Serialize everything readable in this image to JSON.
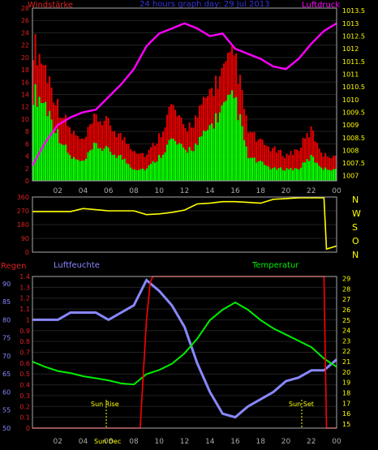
{
  "header": {
    "left_label": "Windstärke",
    "title": "24 hours graph day: 29 Jul 2013",
    "right_label": "Luftdruck"
  },
  "panel2": {
    "right_labels": [
      "N",
      "W",
      "S",
      "O",
      "N"
    ]
  },
  "panel3": {
    "left_label": "Regen",
    "mid_label": "Luftfeuchte",
    "right_label": "Temperatur",
    "sun_rise_label": "Sun Rise",
    "sun_set_label": "Sun Set",
    "sun_dec_label": "Sun Dec"
  },
  "colors": {
    "wind_gust": "#dd0000",
    "wind_avg": "#00ff00",
    "pressure": "#ff00ff",
    "direction": "#ffff00",
    "rain": "#ff0000",
    "humidity": "#8888ff",
    "temperature": "#00ee00",
    "axis_left": "#dd2222",
    "axis_right": "#ffff00"
  },
  "chart_data": [
    {
      "type": "bar",
      "title": "24 hours graph day: 29 Jul 2013",
      "x_ticks": [
        "02",
        "04",
        "06",
        "08",
        "10",
        "12",
        "14",
        "16",
        "18",
        "20",
        "22",
        "00"
      ],
      "left_axis": {
        "label": "Windstärke",
        "ticks": [
          0,
          2,
          4,
          6,
          8,
          10,
          12,
          14,
          16,
          18,
          20,
          22,
          24,
          26,
          28
        ],
        "ylim": [
          0,
          28
        ]
      },
      "right_axis": {
        "label": "Luftdruck",
        "ticks": [
          1007,
          1007.5,
          1008,
          1008.5,
          1009,
          1009.5,
          1010,
          1010.5,
          1011,
          1011.5,
          1012,
          1012.5,
          1013,
          1013.5
        ],
        "ylim": [
          1006.8,
          1013.6
        ]
      },
      "series": [
        {
          "name": "Windstärke",
          "kind": "gust",
          "hours": [
            0,
            1,
            2,
            3,
            4,
            5,
            6,
            7,
            8,
            9,
            10,
            11,
            12,
            13,
            14,
            15,
            16,
            17,
            18,
            19,
            20,
            21,
            22,
            23
          ],
          "values": [
            22,
            18,
            12,
            8,
            6,
            10,
            9,
            7,
            5,
            4,
            7,
            12,
            8,
            10,
            14,
            17,
            20,
            8,
            6,
            5,
            4,
            5,
            8,
            4
          ]
        },
        {
          "name": "Windstärke",
          "kind": "average",
          "hours": [
            0,
            1,
            2,
            3,
            4,
            5,
            6,
            7,
            8,
            9,
            10,
            11,
            12,
            13,
            14,
            15,
            16,
            17,
            18,
            19,
            20,
            21,
            22,
            23
          ],
          "values": [
            15,
            13,
            8,
            4,
            3,
            6,
            5,
            4,
            2,
            2,
            4,
            7,
            5,
            6,
            9,
            12,
            14,
            4,
            3,
            2,
            2,
            2,
            4,
            2
          ]
        },
        {
          "name": "Luftdruck",
          "hours": [
            0,
            1,
            2,
            3,
            4,
            5,
            6,
            7,
            8,
            9,
            10,
            11,
            12,
            13,
            14,
            15,
            16,
            17,
            18,
            19,
            20,
            21,
            22,
            23,
            24
          ],
          "values": [
            1007.4,
            1008.3,
            1009.0,
            1009.3,
            1009.5,
            1009.6,
            1010.1,
            1010.6,
            1011.2,
            1012.1,
            1012.6,
            1012.8,
            1013.0,
            1012.8,
            1012.5,
            1012.6,
            1012.0,
            1011.8,
            1011.6,
            1011.3,
            1011.2,
            1011.6,
            1012.2,
            1012.7,
            1013.0
          ]
        }
      ]
    },
    {
      "type": "line",
      "x_ticks": [
        "02",
        "04",
        "06",
        "08",
        "10",
        "12",
        "14",
        "16",
        "18",
        "20",
        "22",
        "00"
      ],
      "y_ticks": [
        0,
        90,
        180,
        270,
        360
      ],
      "ylim": [
        0,
        360
      ],
      "right_labels": [
        "N",
        "W",
        "S",
        "O",
        "N"
      ],
      "series": [
        {
          "name": "Windrichtung",
          "hours": [
            0,
            2,
            3,
            4,
            6,
            8,
            9,
            10,
            11,
            12,
            13,
            14,
            15,
            16,
            17,
            18,
            19,
            20,
            21,
            22,
            23,
            23.2,
            24
          ],
          "values": [
            265,
            265,
            265,
            285,
            270,
            270,
            245,
            250,
            260,
            275,
            315,
            320,
            330,
            330,
            325,
            320,
            345,
            350,
            355,
            355,
            355,
            20,
            40
          ]
        }
      ]
    },
    {
      "type": "line",
      "x_ticks": [
        "02",
        "04",
        "06",
        "08",
        "10",
        "12",
        "14",
        "16",
        "18",
        "20",
        "22",
        "00"
      ],
      "axes": {
        "rain": {
          "label": "Regen",
          "ticks": [
            0,
            0.1,
            0.2,
            0.3,
            0.4,
            0.5,
            0.6,
            0.7,
            0.8,
            0.9,
            1,
            1.1,
            1.2,
            1.3,
            1.4
          ],
          "ylim": [
            0,
            1.4
          ]
        },
        "humidity": {
          "label": "Luftfeuchte",
          "ticks": [
            50,
            55,
            60,
            65,
            70,
            75,
            80,
            85,
            90
          ],
          "ylim": [
            50,
            92
          ]
        },
        "temperature": {
          "label": "Temperatur",
          "ticks": [
            15,
            16,
            17,
            18,
            19,
            20,
            21,
            22,
            23,
            24,
            25,
            26,
            27,
            28,
            29
          ],
          "ylim": [
            14.6,
            29.2
          ]
        }
      },
      "series": [
        {
          "name": "Regen",
          "hours": [
            0,
            8.5,
            8.7,
            9,
            9.3,
            9.5,
            22.8,
            23,
            23.2,
            24
          ],
          "values": [
            0,
            0,
            0.4,
            1,
            1.35,
            1.4,
            1.4,
            1.4,
            0,
            0
          ]
        },
        {
          "name": "Luftfeuchte",
          "hours": [
            0,
            1,
            2,
            3,
            4,
            5,
            6,
            7,
            8,
            9,
            10,
            11,
            12,
            13,
            14,
            15,
            16,
            17,
            18,
            19,
            20,
            21,
            22,
            23,
            24
          ],
          "values": [
            80,
            80,
            80,
            82,
            82,
            82,
            80,
            82,
            84,
            91,
            88,
            84,
            78,
            68,
            60,
            54,
            53,
            56,
            58,
            60,
            63,
            64,
            66,
            66,
            69
          ]
        },
        {
          "name": "Temperatur",
          "hours": [
            0,
            1,
            2,
            3,
            4,
            5,
            6,
            7,
            8,
            9,
            10,
            11,
            12,
            13,
            14,
            15,
            16,
            17,
            18,
            19,
            20,
            21,
            22,
            23,
            24
          ],
          "values": [
            21,
            20.5,
            20.1,
            19.9,
            19.6,
            19.4,
            19.2,
            18.9,
            18.8,
            19.8,
            20.2,
            20.8,
            21.8,
            23.2,
            25.0,
            26.0,
            26.7,
            26.0,
            25.0,
            24.2,
            23.6,
            23.0,
            22.4,
            21.3,
            20.5
          ]
        }
      ],
      "annotations": [
        "Sun Rise",
        "Sun Set",
        "Sun Dec"
      ]
    }
  ]
}
